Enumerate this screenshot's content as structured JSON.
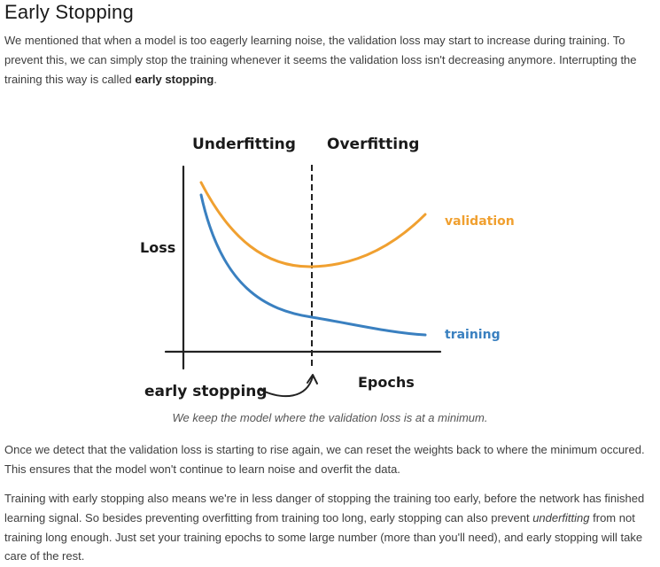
{
  "title": "Early Stopping",
  "p1": {
    "before": "We mentioned that when a model is too eagerly learning noise, the validation loss may start to increase during training. To prevent this, we can simply stop the training whenever it seems the validation loss isn't decreasing anymore. Interrupting the training this way is called ",
    "bold": "early stopping",
    "after": "."
  },
  "figure": {
    "underfitting_label": "Underfitting",
    "overfitting_label": "Overfitting",
    "loss_label": "Loss",
    "epochs_label": "Epochs",
    "early_stopping_label": "early stopping",
    "validation_label": "validation",
    "training_label": "training",
    "colors": {
      "validation": "#f0a030",
      "training": "#3a80c0",
      "axis": "#222222"
    }
  },
  "caption": "We keep the model where the validation loss is at a minimum.",
  "p2": "Once we detect that the validation loss is starting to rise again, we can reset the weights back to where the minimum occured. This ensures that the model won't continue to learn noise and overfit the data.",
  "p3": {
    "before": "Training with early stopping also means we're in less danger of stopping the training too early, before the network has finished learning signal. So besides preventing overfitting from training too long, early stopping can also prevent ",
    "italic": "underfitting",
    "after": " from not training long enough. Just set your training epochs to some large number (more than you'll need), and early stopping will take care of the rest."
  }
}
